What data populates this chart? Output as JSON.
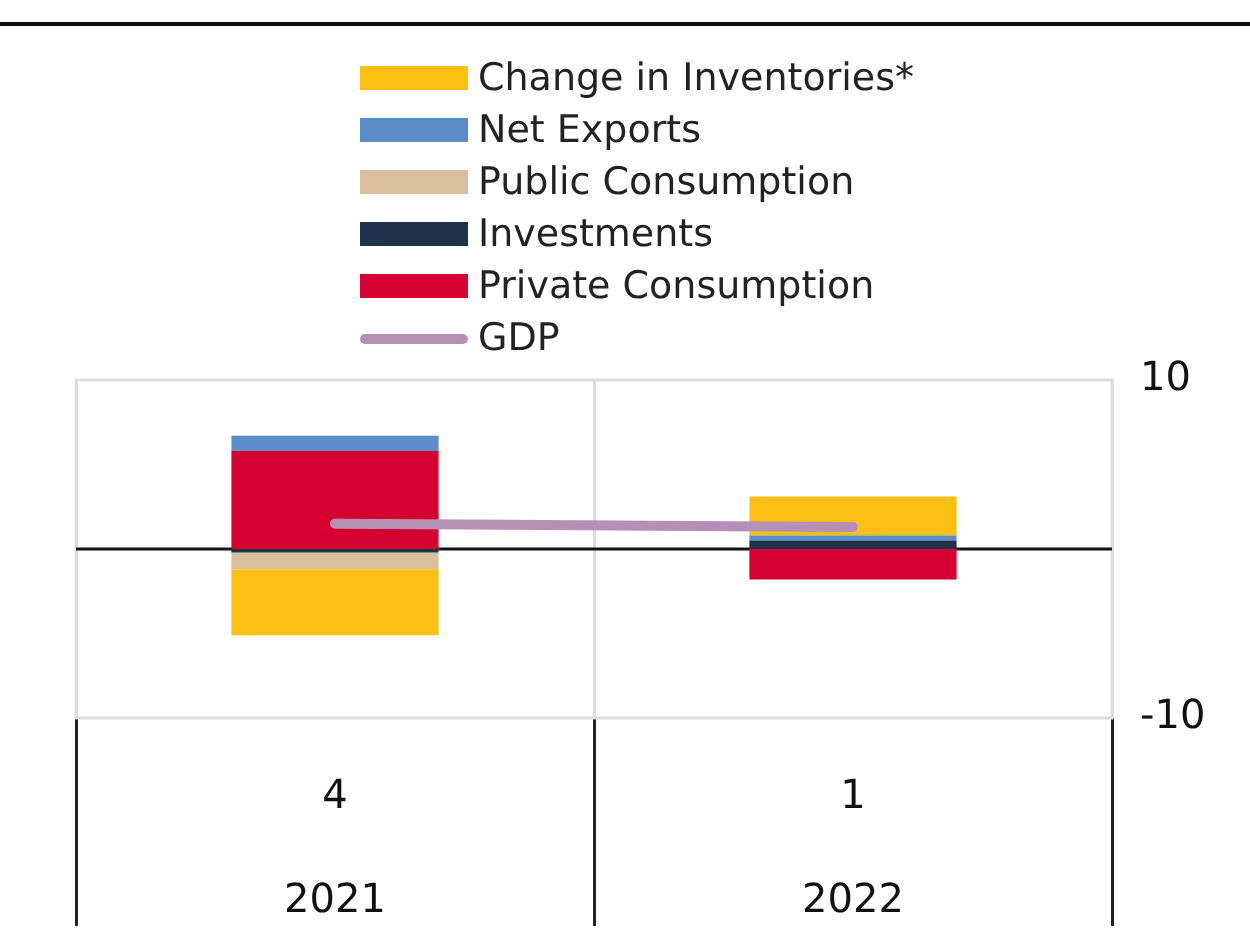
{
  "chart_data": {
    "type": "bar",
    "stacked": true,
    "categories": [
      "4\n2021",
      "1\n2022"
    ],
    "series": [
      {
        "name": "Private Consumption",
        "color": "#d40030",
        "values": [
          5.8,
          -1.8
        ]
      },
      {
        "name": "Investments",
        "color": "#1d3349",
        "values": [
          -0.2,
          0.5
        ]
      },
      {
        "name": "Public Consumption",
        "color": "#d6bf9a",
        "values": [
          -1.0,
          0
        ]
      },
      {
        "name": "Net Exports",
        "color": "#5b8ec8",
        "values": [
          0.9,
          0.3
        ]
      },
      {
        "name": "Change in Inventories*",
        "color": "#f9c013",
        "values": [
          -3.9,
          2.3
        ]
      },
      {
        "name": "GDP",
        "type": "line",
        "color": "#b58fb5",
        "values": [
          1.5,
          1.3
        ],
        "marker": "none"
      }
    ],
    "ylim": [
      -10,
      10
    ],
    "yticks": [
      -10,
      10
    ],
    "grid": "x",
    "legend": "top"
  }
}
